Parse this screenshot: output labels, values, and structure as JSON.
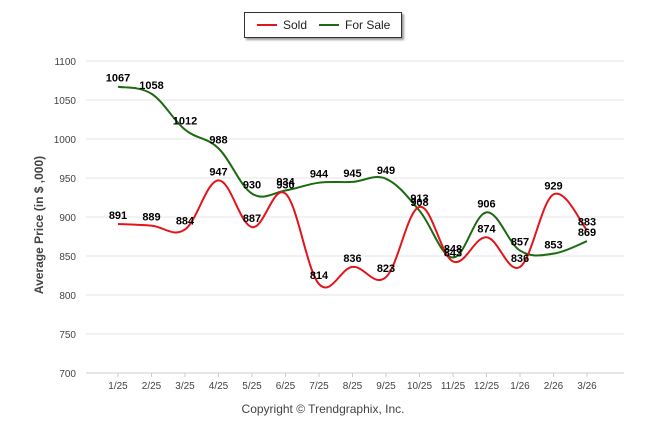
{
  "legend": {
    "sold_label": "Sold",
    "for_sale_label": "For Sale"
  },
  "footer": {
    "copyright": "Copyright © Trendgraphix, Inc."
  },
  "colors": {
    "sold": "#e3141b",
    "for_sale": "#1d6a12",
    "grid": "#e6e6e6",
    "axis_text": "#444444"
  },
  "chart_data": {
    "type": "line",
    "title": "",
    "xlabel": "",
    "ylabel": "Average Price (in $ ,000)",
    "categories": [
      "1/25",
      "2/25",
      "3/25",
      "4/25",
      "5/25",
      "6/25",
      "7/25",
      "8/25",
      "9/25",
      "10/25",
      "11/25",
      "12/25",
      "1/26",
      "2/26",
      "3/26"
    ],
    "ylim": [
      700,
      1100
    ],
    "yticks": [
      700,
      750,
      800,
      850,
      900,
      950,
      1000,
      1050,
      1100
    ],
    "grid": true,
    "legend_position": "top-center",
    "series": [
      {
        "name": "Sold",
        "values": [
          891,
          889,
          884,
          947,
          887,
          930,
          814,
          836,
          823,
          913,
          843,
          874,
          836,
          929,
          883
        ]
      },
      {
        "name": "For Sale",
        "values": [
          1067,
          1058,
          1012,
          988,
          930,
          934,
          944,
          945,
          949,
          908,
          848,
          906,
          857,
          853,
          869
        ]
      }
    ]
  }
}
